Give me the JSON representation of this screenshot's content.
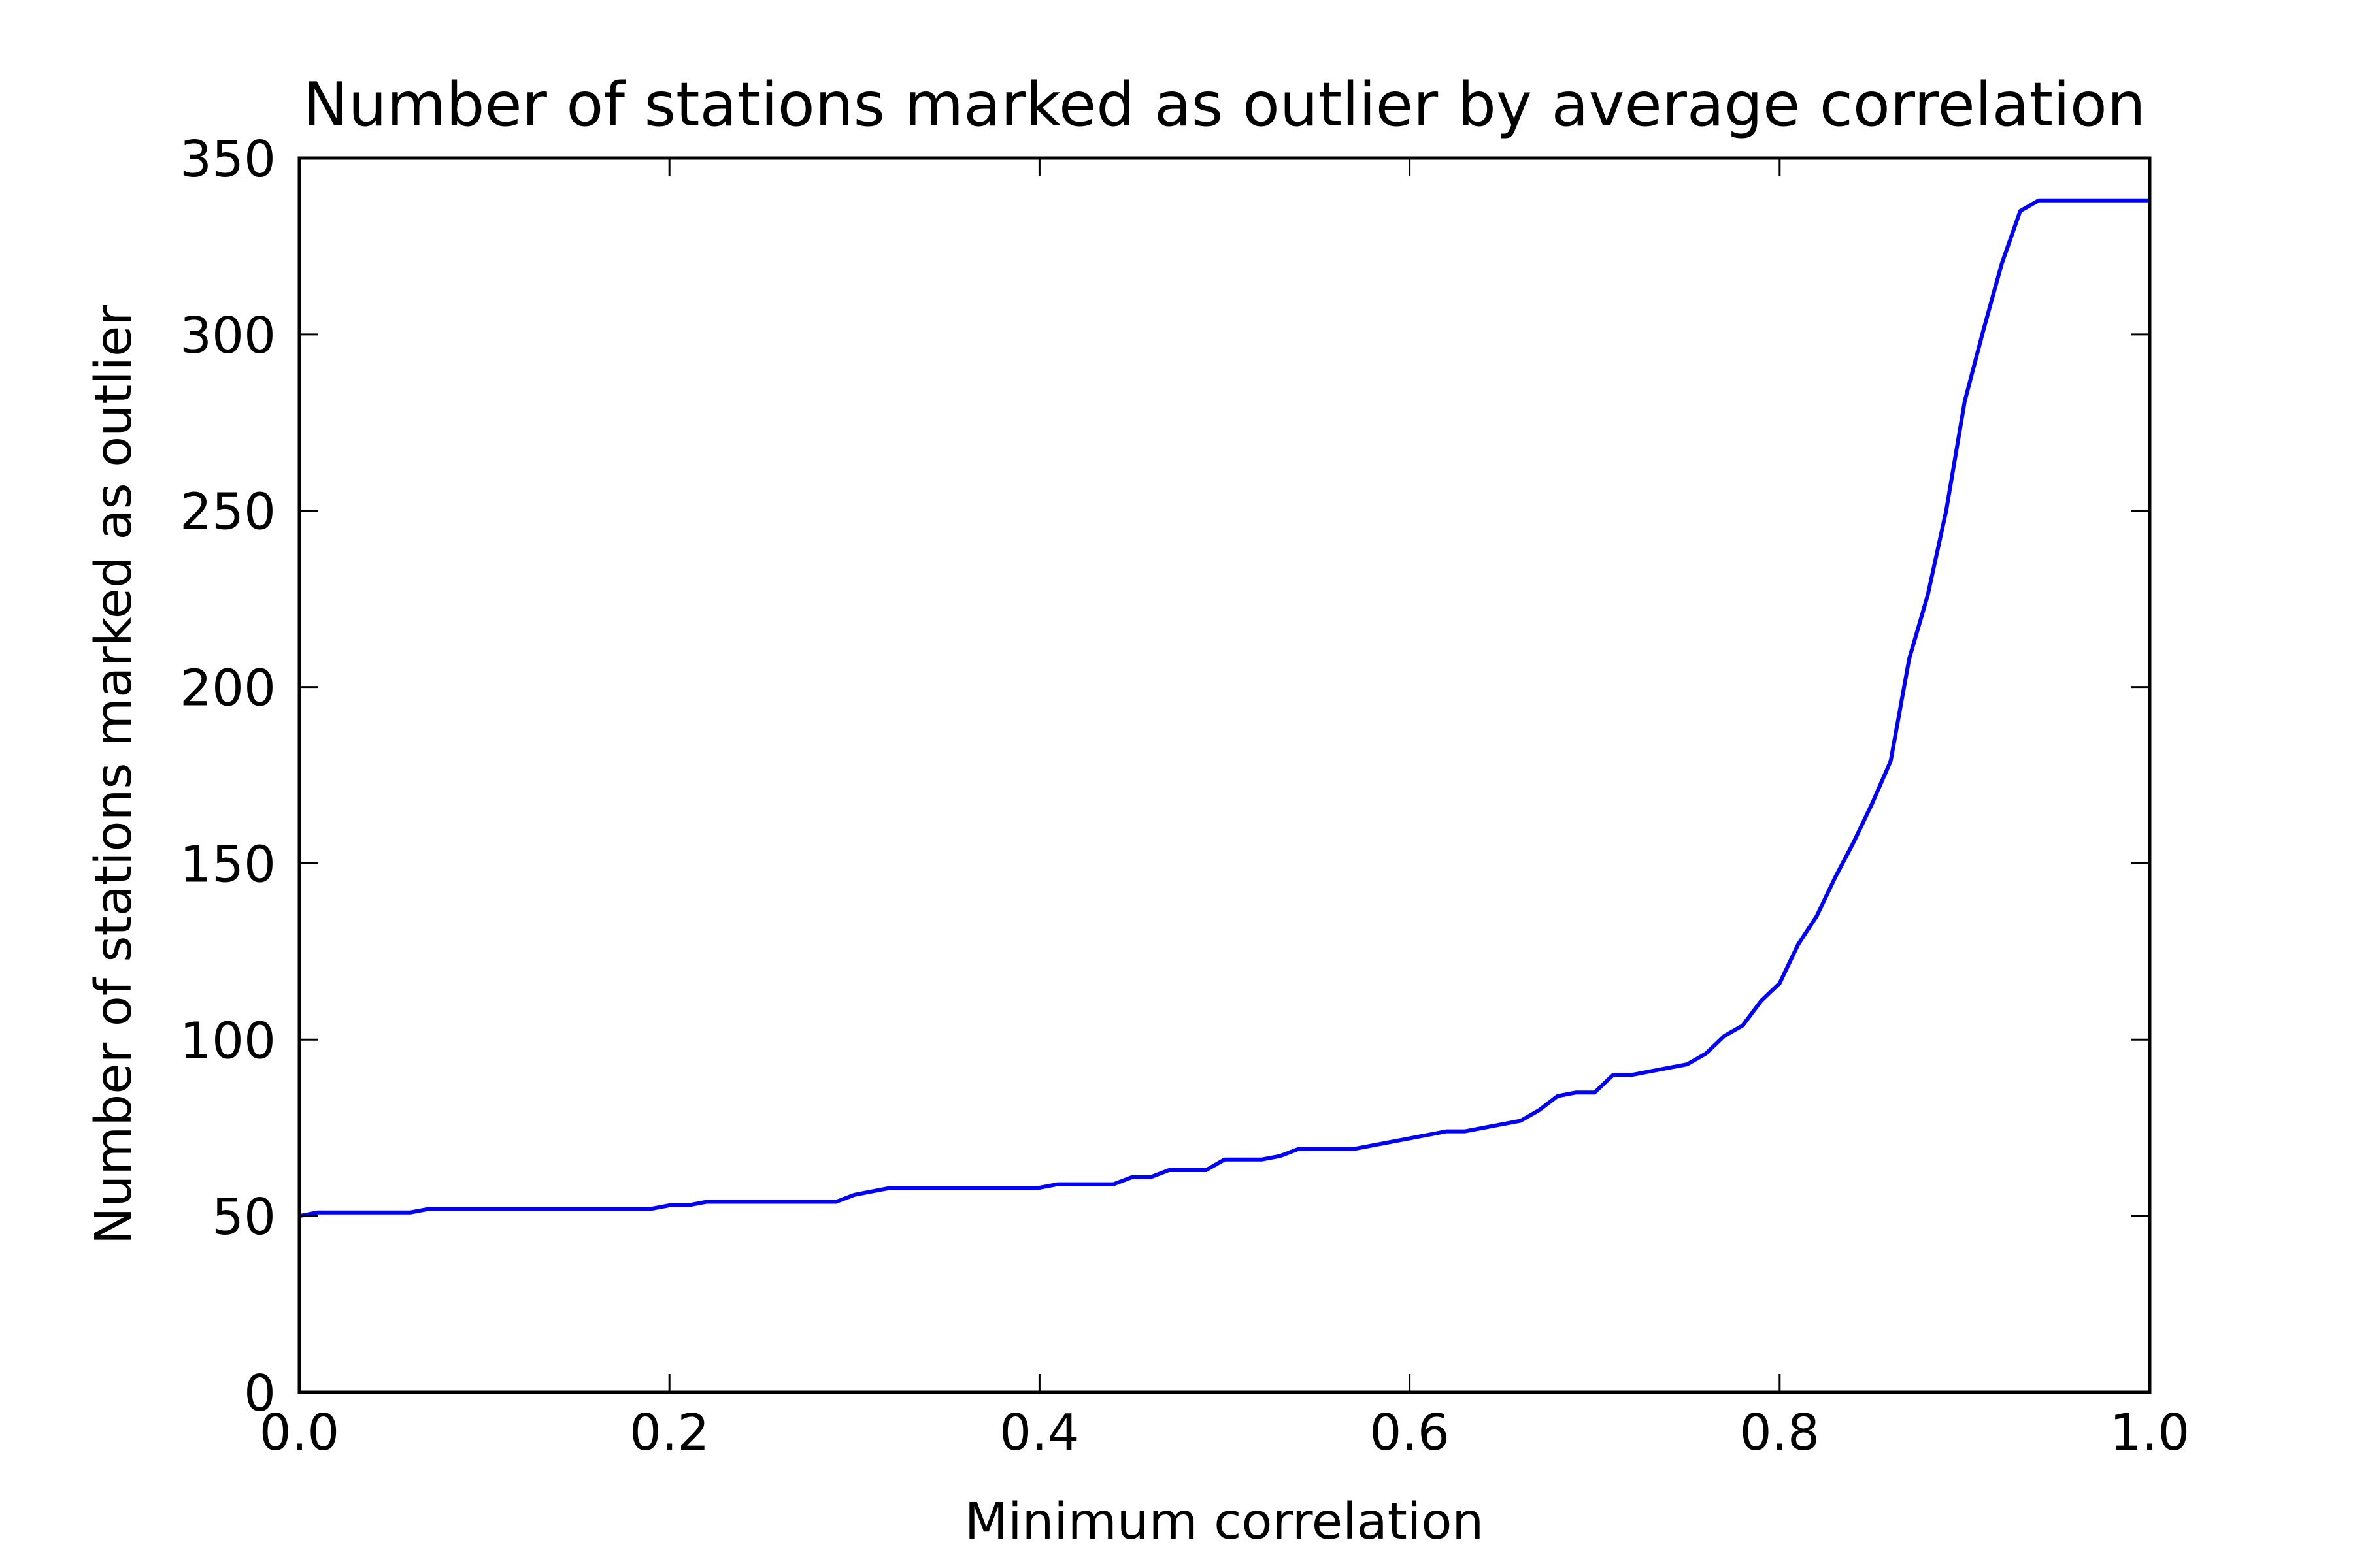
{
  "chart_data": {
    "type": "line",
    "title": "Number of stations marked as outlier by average correlation",
    "xlabel": "Minimum correlation",
    "ylabel": "Number of stations marked as outlier",
    "xlim": [
      0.0,
      1.0
    ],
    "ylim": [
      0,
      350
    ],
    "xticks": [
      "0.0",
      "0.2",
      "0.4",
      "0.6",
      "0.8",
      "1.0"
    ],
    "yticks": [
      "0",
      "50",
      "100",
      "150",
      "200",
      "250",
      "300",
      "350"
    ],
    "grid": false,
    "legend": "none",
    "series": [
      {
        "color": "#0000ff",
        "x": [
          0.0,
          0.01,
          0.02,
          0.03,
          0.04,
          0.05,
          0.06,
          0.07,
          0.08,
          0.09,
          0.1,
          0.11,
          0.12,
          0.13,
          0.14,
          0.15,
          0.16,
          0.17,
          0.18,
          0.19,
          0.2,
          0.21,
          0.22,
          0.23,
          0.24,
          0.25,
          0.26,
          0.27,
          0.28,
          0.29,
          0.3,
          0.31,
          0.32,
          0.33,
          0.34,
          0.35,
          0.36,
          0.37,
          0.38,
          0.39,
          0.4,
          0.41,
          0.42,
          0.43,
          0.44,
          0.45,
          0.46,
          0.47,
          0.48,
          0.49,
          0.5,
          0.51,
          0.52,
          0.53,
          0.54,
          0.55,
          0.56,
          0.57,
          0.58,
          0.59,
          0.6,
          0.61,
          0.62,
          0.63,
          0.64,
          0.65,
          0.66,
          0.67,
          0.68,
          0.69,
          0.7,
          0.71,
          0.72,
          0.73,
          0.74,
          0.75,
          0.76,
          0.77,
          0.78,
          0.79,
          0.8,
          0.81,
          0.82,
          0.83,
          0.84,
          0.85,
          0.86,
          0.87,
          0.88,
          0.89,
          0.9,
          0.91,
          0.92,
          0.93,
          0.94,
          0.95,
          0.96,
          0.97,
          0.98,
          0.99,
          1.0
        ],
        "y": [
          50,
          51,
          51,
          51,
          51,
          51,
          51,
          52,
          52,
          52,
          52,
          52,
          52,
          52,
          52,
          52,
          52,
          52,
          52,
          52,
          53,
          53,
          54,
          54,
          54,
          54,
          54,
          54,
          54,
          54,
          56,
          57,
          58,
          58,
          58,
          58,
          58,
          58,
          58,
          58,
          58,
          59,
          59,
          59,
          59,
          61,
          61,
          63,
          63,
          63,
          66,
          66,
          66,
          67,
          69,
          69,
          69,
          69,
          70,
          71,
          72,
          73,
          74,
          74,
          75,
          76,
          77,
          80,
          84,
          85,
          85,
          90,
          90,
          91,
          92,
          93,
          96,
          101,
          104,
          111,
          116,
          127,
          135,
          146,
          156,
          167,
          179,
          208,
          226,
          250,
          281,
          301,
          320,
          335,
          338,
          338,
          338,
          338,
          338,
          338,
          338
        ]
      }
    ]
  }
}
